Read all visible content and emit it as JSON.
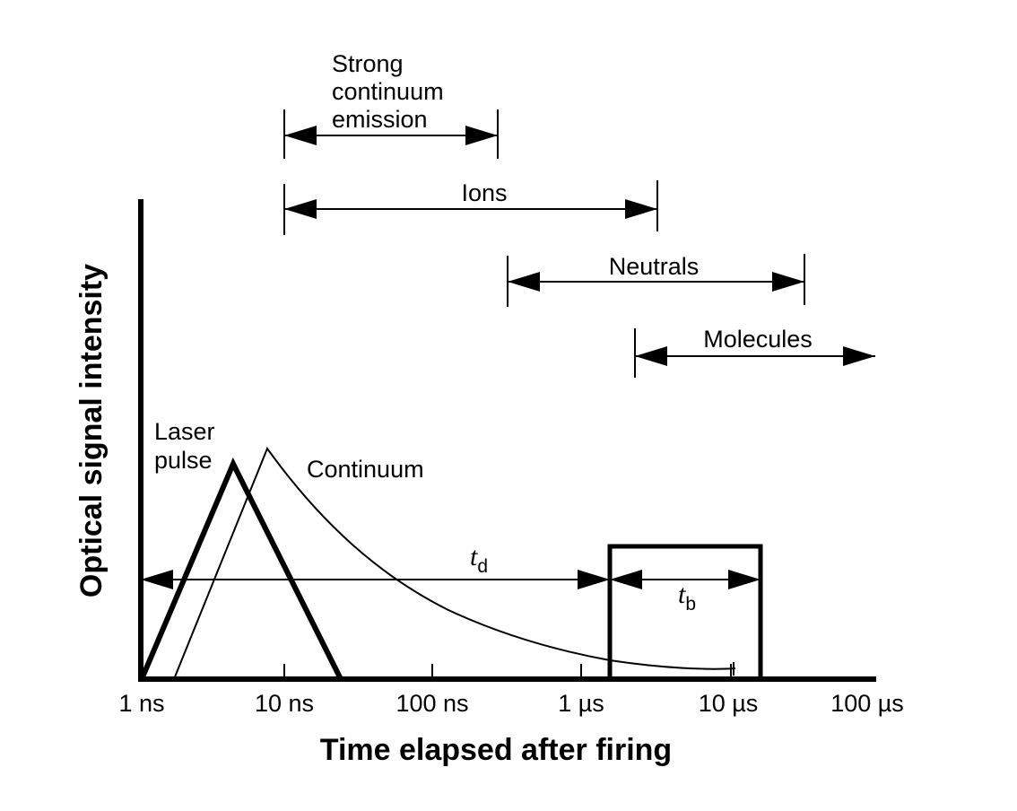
{
  "axes": {
    "x_title": "Time elapsed after firing",
    "y_title": "Optical signal intensity",
    "x_ticks": [
      "1 ns",
      "10 ns",
      "100 ns",
      "1 µs",
      "10 µs",
      "100 µs"
    ]
  },
  "ranges": {
    "strong_continuum": {
      "line1": "Strong",
      "line2": "continuum",
      "line3": "emission"
    },
    "ions": "Ions",
    "neutrals": "Neutrals",
    "molecules": "Molecules"
  },
  "curves": {
    "laser_line1": "Laser",
    "laser_line2": "pulse",
    "continuum": "Continuum"
  },
  "intervals": {
    "delay_main": "t",
    "delay_sub": "d",
    "gate_main": "t",
    "gate_sub": "b"
  }
}
